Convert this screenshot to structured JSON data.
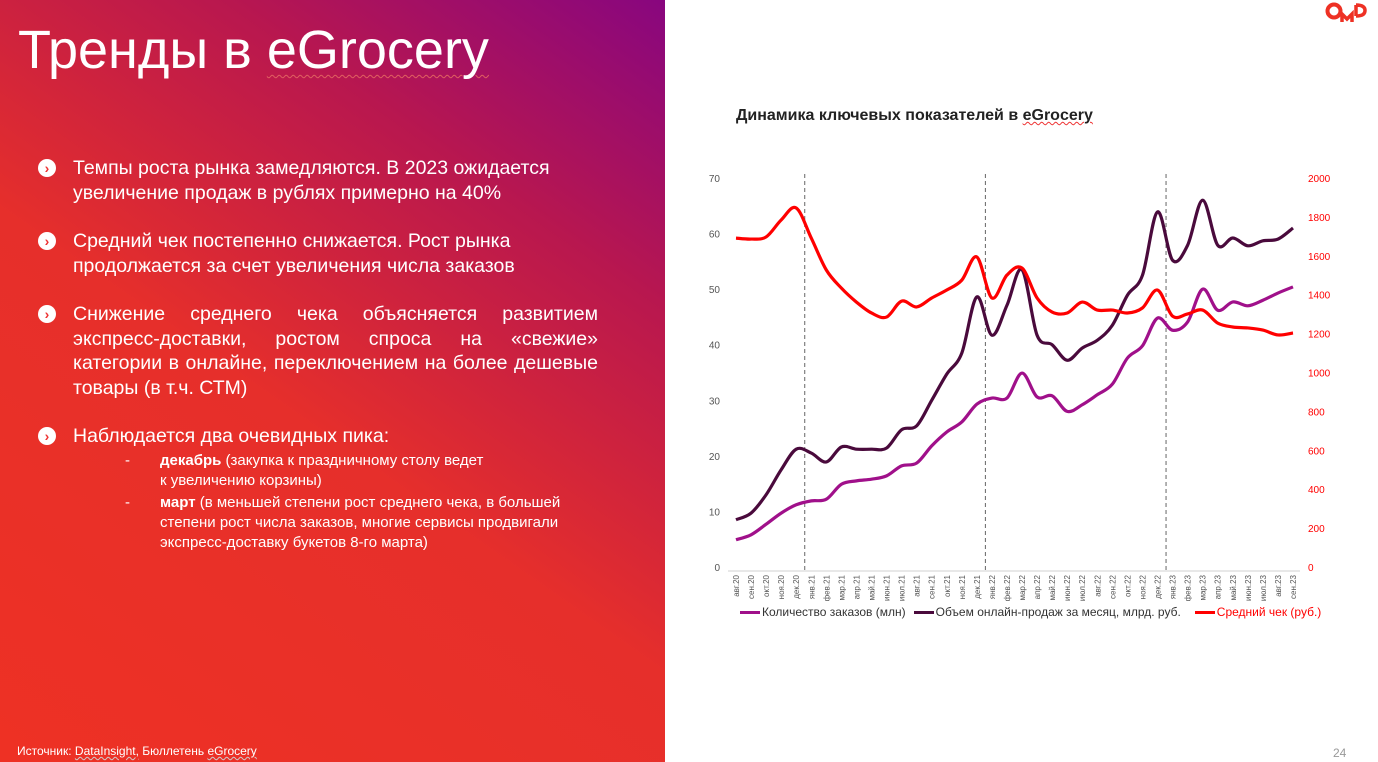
{
  "slide": {
    "title_plain": "Тренды в ",
    "title_brand": "eGrocery",
    "bullets": [
      {
        "text": "Темпы роста рынка замедляются. В 2023 ожидается увеличение продаж в рублях примерно на 40%"
      },
      {
        "text": "Средний чек постепенно снижается. Рост рынка продолжается за счет увеличения числа заказов"
      },
      {
        "text": "Снижение среднего чека объясняется развитием экспресс-доставки, ростом спроса на «свежие» категории в онлайне, переключением на более дешевые товары (в т.ч. СТМ)"
      },
      {
        "text": "Наблюдается два очевидных пика:",
        "sub": [
          {
            "bold": "декабрь",
            "text": " (закупка к праздничному столу ведет к увеличению корзины)"
          },
          {
            "bold": "март",
            "text": " (в меньшей степени рост среднего чека, в большей степени рост числа заказов, многие сервисы продвигали экспресс-доставку букетов 8-го марта)"
          }
        ]
      }
    ],
    "source_prefix": "Источник: ",
    "source_link": "DataInsight,",
    "source_mid": " Бюллетень ",
    "source_brand": "eGrocery",
    "logo_text": "OMD",
    "page_number": "24",
    "bullet_icon": "chevron-right-circle-icon"
  },
  "chart_data": {
    "type": "line",
    "title": "Динамика ключевых показателей в eGrocery",
    "categories": [
      "авг.20",
      "сен.20",
      "окт.20",
      "ноя.20",
      "дек.20",
      "янв.21",
      "фев.21",
      "мар.21",
      "апр.21",
      "май.21",
      "июн.21",
      "июл.21",
      "авг.21",
      "сен.21",
      "окт.21",
      "ноя.21",
      "дек.21",
      "янв.22",
      "фев.22",
      "мар.22",
      "апр.22",
      "май.22",
      "июн.22",
      "июл.22",
      "авг.22",
      "сен.22",
      "окт.22",
      "ноя.22",
      "дек.22",
      "янв.23",
      "фев.23",
      "мар.23",
      "апр.23",
      "май.23",
      "июн.23",
      "июл.23",
      "авг.23",
      "сен.23"
    ],
    "y_left": {
      "range": [
        0,
        70
      ],
      "ticks": [
        "0",
        "10",
        "20",
        "30",
        "40",
        "50",
        "60",
        "70"
      ]
    },
    "y_right": {
      "range": [
        0,
        2000
      ],
      "ticks": [
        "0",
        "200",
        "400",
        "600",
        "800",
        "1000",
        "1200",
        "1400",
        "1600",
        "1800",
        "2000"
      ],
      "color": "#ff0000"
    },
    "year_boundaries": [
      "дек.20/янв.21",
      "дек.21/янв.22",
      "дек.22/янв.23"
    ],
    "grid": false,
    "legend_position": "bottom",
    "series": [
      {
        "name": "Количество заказов (млн)",
        "axis": "left",
        "color": "#a0108a",
        "values": [
          4.9,
          5.8,
          7.7,
          9.7,
          11.2,
          11.9,
          12.2,
          14.9,
          15.5,
          15.8,
          16.4,
          18.2,
          18.7,
          21.8,
          24.3,
          26.1,
          29.3,
          30.4,
          30.4,
          34.9,
          30.6,
          30.8,
          28.0,
          29.2,
          31.0,
          32.9,
          37.6,
          39.8,
          44.8,
          42.6,
          44.1,
          50.0,
          46.2,
          47.7,
          47.0,
          48.0,
          49.3,
          50.4
        ]
      },
      {
        "name": "Объем онлайн-продаж за месяц, млрд. руб.",
        "axis": "left",
        "color": "#4a0a3c",
        "values": [
          8.5,
          9.7,
          13.0,
          17.5,
          21.2,
          20.5,
          18.9,
          21.6,
          21.2,
          21.2,
          21.4,
          24.7,
          25.4,
          30.0,
          34.7,
          38.5,
          48.6,
          41.7,
          47.1,
          53.5,
          41.7,
          40.0,
          37.2,
          39.4,
          40.8,
          43.5,
          48.9,
          52.5,
          63.9,
          55.2,
          57.9,
          66.0,
          57.9,
          59.2,
          57.8,
          58.7,
          59.0,
          61.0
        ]
      },
      {
        "name": "Средний чек (руб.)",
        "axis": "right",
        "color": "#ff0000",
        "values": [
          1691,
          1686,
          1697,
          1784,
          1846,
          1691,
          1527,
          1434,
          1362,
          1306,
          1285,
          1367,
          1337,
          1383,
          1424,
          1475,
          1594,
          1383,
          1501,
          1537,
          1383,
          1311,
          1306,
          1362,
          1321,
          1321,
          1306,
          1332,
          1424,
          1290,
          1301,
          1321,
          1254,
          1234,
          1229,
          1218,
          1193,
          1203
        ]
      }
    ]
  }
}
